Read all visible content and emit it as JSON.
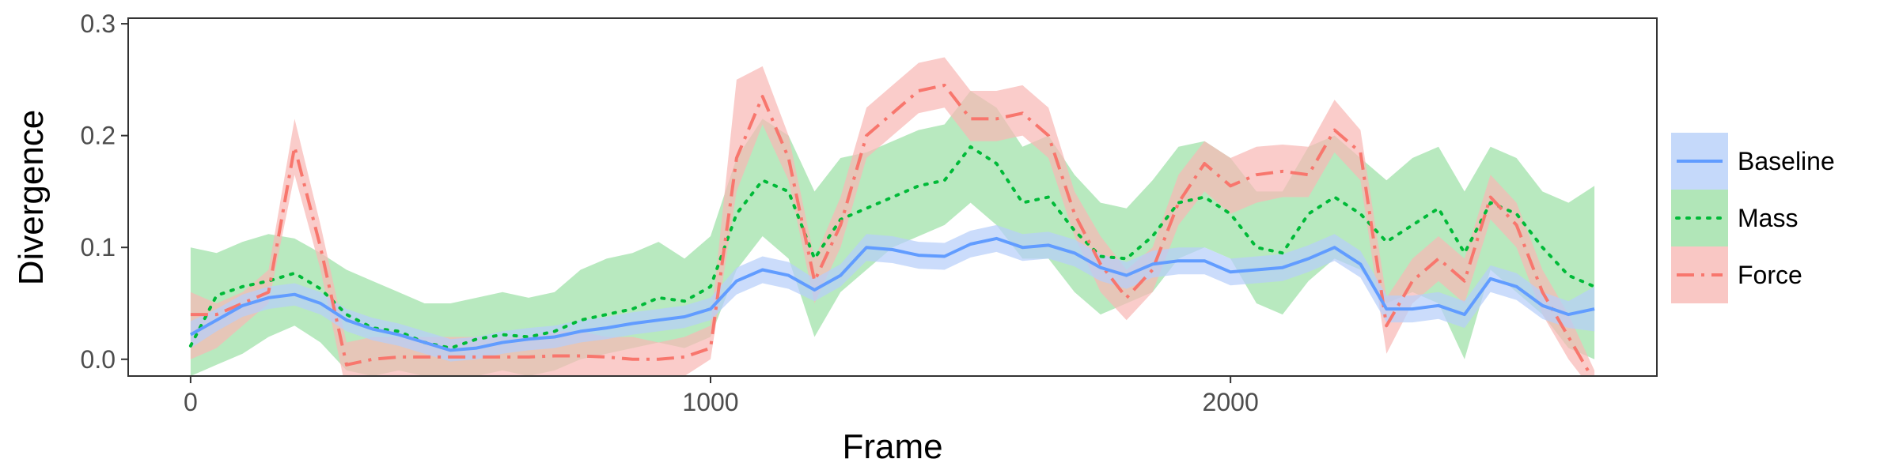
{
  "chart_data": {
    "type": "line",
    "title": "",
    "xlabel": "Frame",
    "ylabel": "Divergence",
    "xlim": [
      -120,
      2820
    ],
    "ylim": [
      -0.015,
      0.305
    ],
    "x_ticks": [
      0,
      1000,
      2000
    ],
    "y_ticks": [
      0.0,
      0.1,
      0.2,
      0.3
    ],
    "x_tick_labels": [
      "0",
      "1000",
      "2000"
    ],
    "y_tick_labels": [
      "0.0",
      "0.1",
      "0.2",
      "0.3"
    ],
    "grid": false,
    "legend_position": "right",
    "x": [
      0,
      50,
      100,
      150,
      200,
      250,
      300,
      350,
      400,
      450,
      500,
      550,
      600,
      650,
      700,
      750,
      800,
      850,
      900,
      950,
      1000,
      1050,
      1100,
      1150,
      1200,
      1250,
      1300,
      1350,
      1400,
      1450,
      1500,
      1550,
      1600,
      1650,
      1700,
      1750,
      1800,
      1850,
      1900,
      1950,
      2000,
      2050,
      2100,
      2150,
      2200,
      2250,
      2300,
      2350,
      2400,
      2450,
      2500,
      2550,
      2600,
      2650,
      2700
    ],
    "series": [
      {
        "name": "Mass",
        "color": "#00BA38",
        "fill": "#9de0a6",
        "line_style": "dotted",
        "values": [
          0.012,
          0.057,
          0.065,
          0.07,
          0.077,
          0.063,
          0.04,
          0.028,
          0.025,
          0.015,
          0.01,
          0.018,
          0.022,
          0.02,
          0.025,
          0.035,
          0.04,
          0.045,
          0.055,
          0.052,
          0.065,
          0.13,
          0.16,
          0.15,
          0.09,
          0.125,
          0.135,
          0.145,
          0.155,
          0.16,
          0.19,
          0.175,
          0.14,
          0.145,
          0.115,
          0.092,
          0.09,
          0.11,
          0.14,
          0.145,
          0.13,
          0.1,
          0.095,
          0.13,
          0.145,
          0.13,
          0.105,
          0.12,
          0.135,
          0.095,
          0.14,
          0.13,
          0.1,
          0.075,
          0.065
        ],
        "lower": [
          -0.015,
          -0.005,
          0.005,
          0.02,
          0.03,
          0.015,
          -0.01,
          -0.015,
          -0.01,
          -0.015,
          -0.02,
          -0.015,
          -0.01,
          -0.015,
          -0.01,
          0.0,
          0.005,
          0.01,
          0.015,
          0.01,
          0.02,
          0.08,
          0.11,
          0.09,
          0.02,
          0.06,
          0.08,
          0.1,
          0.11,
          0.12,
          0.14,
          0.12,
          0.09,
          0.09,
          0.06,
          0.04,
          0.05,
          0.06,
          0.09,
          0.1,
          0.09,
          0.05,
          0.04,
          0.07,
          0.09,
          0.08,
          0.05,
          0.06,
          0.05,
          0.0,
          0.08,
          0.06,
          0.04,
          0.01,
          0.0
        ],
        "upper": [
          0.1,
          0.095,
          0.105,
          0.112,
          0.108,
          0.095,
          0.08,
          0.07,
          0.06,
          0.05,
          0.05,
          0.055,
          0.06,
          0.055,
          0.06,
          0.08,
          0.09,
          0.095,
          0.105,
          0.09,
          0.11,
          0.18,
          0.215,
          0.2,
          0.15,
          0.18,
          0.185,
          0.195,
          0.205,
          0.21,
          0.24,
          0.225,
          0.19,
          0.2,
          0.165,
          0.14,
          0.135,
          0.16,
          0.19,
          0.195,
          0.18,
          0.15,
          0.15,
          0.19,
          0.2,
          0.18,
          0.16,
          0.18,
          0.19,
          0.15,
          0.19,
          0.18,
          0.15,
          0.14,
          0.155
        ]
      },
      {
        "name": "Force",
        "color": "#F8766D",
        "fill": "#f8b9b5",
        "line_style": "dashdot",
        "values": [
          0.04,
          0.04,
          0.05,
          0.06,
          0.19,
          0.1,
          -0.005,
          0.0,
          0.002,
          0.002,
          0.002,
          0.002,
          0.002,
          0.002,
          0.003,
          0.003,
          0.002,
          0.0,
          0.0,
          0.002,
          0.01,
          0.18,
          0.235,
          0.18,
          0.07,
          0.12,
          0.2,
          0.22,
          0.24,
          0.245,
          0.215,
          0.215,
          0.22,
          0.2,
          0.13,
          0.085,
          0.055,
          0.08,
          0.14,
          0.175,
          0.155,
          0.165,
          0.168,
          0.165,
          0.205,
          0.185,
          0.03,
          0.07,
          0.09,
          0.07,
          0.145,
          0.12,
          0.06,
          0.02,
          -0.02
        ],
        "lower": [
          0.0,
          0.01,
          0.03,
          0.05,
          0.165,
          0.08,
          -0.03,
          -0.02,
          -0.02,
          -0.02,
          -0.02,
          -0.02,
          -0.02,
          -0.02,
          -0.02,
          -0.02,
          -0.02,
          -0.02,
          -0.02,
          -0.015,
          0.0,
          0.15,
          0.21,
          0.16,
          0.05,
          0.1,
          0.18,
          0.2,
          0.22,
          0.225,
          0.195,
          0.195,
          0.2,
          0.18,
          0.11,
          0.06,
          0.035,
          0.06,
          0.12,
          0.15,
          0.13,
          0.14,
          0.145,
          0.145,
          0.185,
          0.16,
          0.005,
          0.05,
          0.07,
          0.05,
          0.125,
          0.1,
          0.04,
          0.0,
          -0.03
        ],
        "upper": [
          0.06,
          0.05,
          0.06,
          0.08,
          0.215,
          0.12,
          0.015,
          0.02,
          0.02,
          0.02,
          0.02,
          0.02,
          0.02,
          0.02,
          0.025,
          0.025,
          0.02,
          0.02,
          0.015,
          0.02,
          0.03,
          0.25,
          0.262,
          0.2,
          0.09,
          0.145,
          0.225,
          0.245,
          0.265,
          0.27,
          0.24,
          0.24,
          0.245,
          0.225,
          0.15,
          0.11,
          0.08,
          0.1,
          0.165,
          0.195,
          0.18,
          0.19,
          0.192,
          0.19,
          0.232,
          0.205,
          0.055,
          0.09,
          0.11,
          0.09,
          0.165,
          0.14,
          0.08,
          0.04,
          -0.01
        ]
      },
      {
        "name": "Baseline",
        "color": "#619CFF",
        "fill": "#b7cff9",
        "line_style": "solid",
        "values": [
          0.022,
          0.035,
          0.048,
          0.055,
          0.058,
          0.05,
          0.035,
          0.027,
          0.022,
          0.015,
          0.008,
          0.01,
          0.015,
          0.018,
          0.02,
          0.025,
          0.028,
          0.032,
          0.035,
          0.038,
          0.045,
          0.07,
          0.08,
          0.075,
          0.062,
          0.075,
          0.1,
          0.098,
          0.093,
          0.092,
          0.103,
          0.108,
          0.1,
          0.102,
          0.095,
          0.082,
          0.075,
          0.085,
          0.088,
          0.088,
          0.078,
          0.08,
          0.082,
          0.09,
          0.1,
          0.085,
          0.045,
          0.045,
          0.048,
          0.04,
          0.072,
          0.065,
          0.048,
          0.04,
          0.045
        ],
        "lower": [
          0.01,
          0.025,
          0.038,
          0.045,
          0.048,
          0.04,
          0.025,
          0.017,
          0.012,
          0.005,
          -0.002,
          0.0,
          0.005,
          0.008,
          0.01,
          0.015,
          0.018,
          0.022,
          0.025,
          0.028,
          0.035,
          0.058,
          0.068,
          0.063,
          0.052,
          0.065,
          0.088,
          0.086,
          0.081,
          0.08,
          0.091,
          0.096,
          0.088,
          0.09,
          0.083,
          0.07,
          0.063,
          0.073,
          0.076,
          0.076,
          0.066,
          0.068,
          0.07,
          0.078,
          0.088,
          0.073,
          0.033,
          0.033,
          0.036,
          0.028,
          0.06,
          0.053,
          0.036,
          0.028,
          0.025
        ],
        "upper": [
          0.034,
          0.045,
          0.058,
          0.065,
          0.068,
          0.06,
          0.045,
          0.037,
          0.032,
          0.025,
          0.018,
          0.02,
          0.025,
          0.028,
          0.03,
          0.035,
          0.038,
          0.042,
          0.045,
          0.048,
          0.055,
          0.082,
          0.092,
          0.087,
          0.072,
          0.085,
          0.112,
          0.11,
          0.105,
          0.104,
          0.115,
          0.12,
          0.112,
          0.114,
          0.107,
          0.094,
          0.087,
          0.097,
          0.1,
          0.1,
          0.09,
          0.092,
          0.094,
          0.102,
          0.112,
          0.097,
          0.057,
          0.057,
          0.06,
          0.052,
          0.084,
          0.077,
          0.06,
          0.052,
          0.065
        ]
      }
    ],
    "legend_order": [
      "Baseline",
      "Mass",
      "Force"
    ]
  }
}
